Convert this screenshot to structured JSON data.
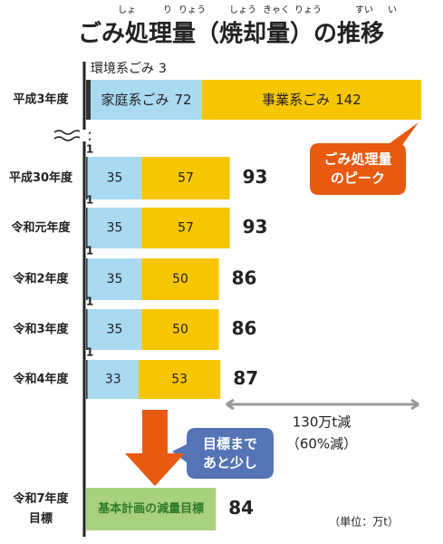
{
  "chart_data": {
    "type": "bar",
    "orientation": "horizontal",
    "stacked": true,
    "title": "ごみ処理量（焼却量）の推移",
    "title_ruby": [
      "しょ",
      "り",
      "りょう",
      "しょう",
      "きゃく",
      "りょう",
      "すい",
      "い"
    ],
    "categories": [
      "平成3年度",
      "平成30年度",
      "令和元年度",
      "令和2年度",
      "令和3年度",
      "令和4年度"
    ],
    "series": [
      {
        "name": "環境系ごみ",
        "color": "#333333",
        "values": [
          3,
          1,
          1,
          1,
          1,
          1
        ]
      },
      {
        "name": "家庭系ごみ",
        "color": "#a9daf2",
        "values": [
          72,
          35,
          35,
          35,
          35,
          33
        ]
      },
      {
        "name": "事業系ごみ",
        "color": "#f7c600",
        "values": [
          142,
          57,
          57,
          50,
          50,
          53
        ]
      }
    ],
    "totals": [
      null,
      93,
      93,
      86,
      86,
      87
    ],
    "xlim": [
      0,
      217
    ],
    "target": {
      "category_lines": [
        "令和7年度",
        "目標"
      ],
      "name": "基本計画の減量目標",
      "value": 84,
      "color": "#a8d17e"
    },
    "annotations": {
      "peak": [
        "ごみ処理量",
        "のピーク"
      ],
      "reduction": [
        "130万t減",
        "（60%減）"
      ],
      "near": [
        "目標まで",
        "あと少し"
      ]
    },
    "unit": "（単位：万t）"
  }
}
